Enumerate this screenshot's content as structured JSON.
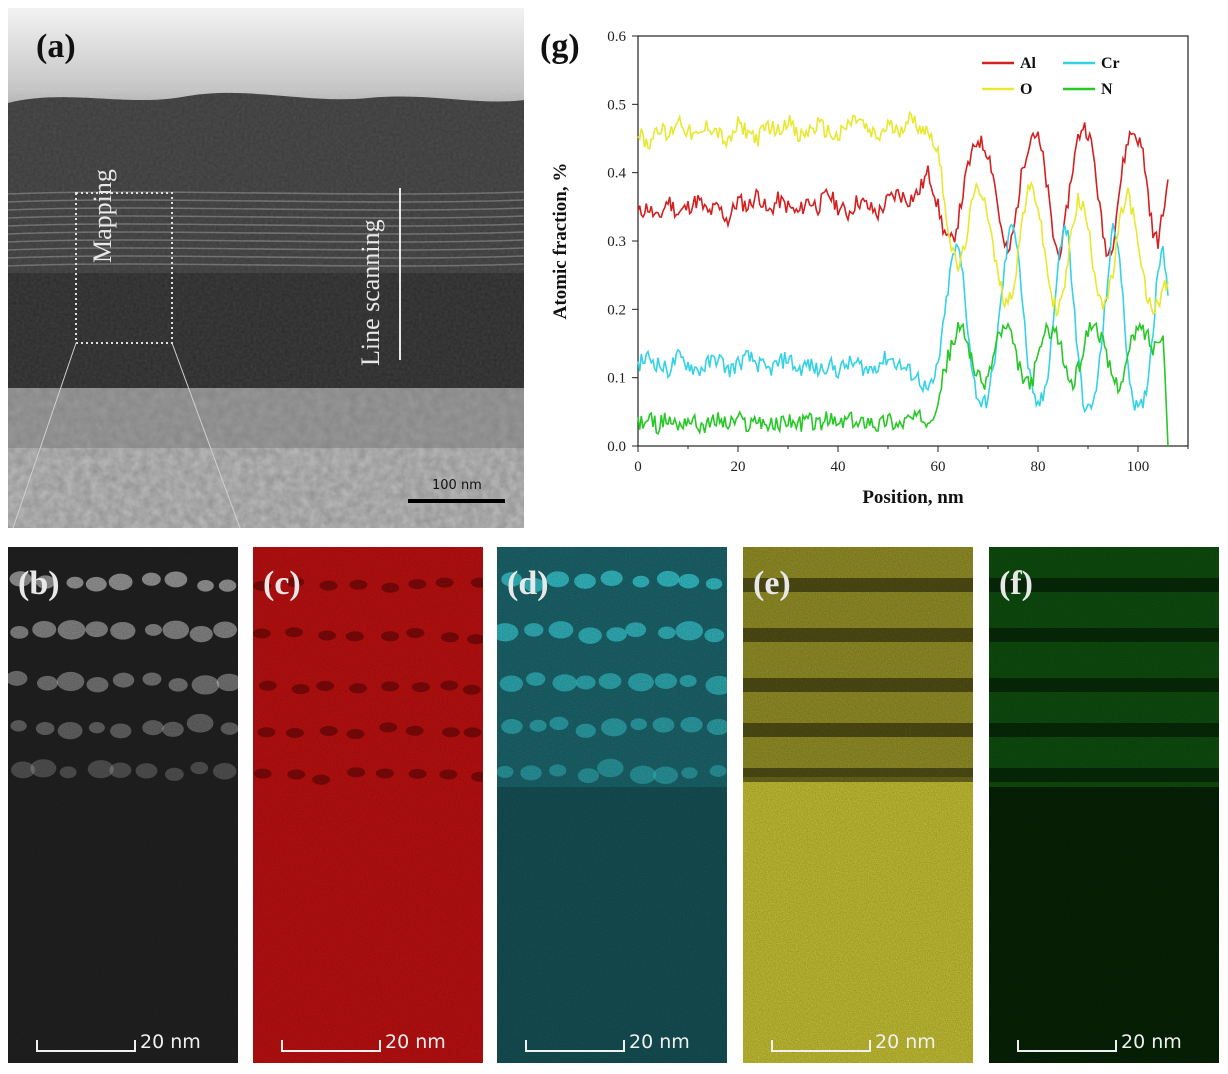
{
  "panels": {
    "a": {
      "label": "(a)",
      "mapping_text": "Mapping",
      "line_text": "Line scanning",
      "scale_text": "100 nm"
    },
    "b": {
      "label": "(b)",
      "scale_text": "20 nm",
      "color": "#ffffff"
    },
    "c": {
      "label": "(c)",
      "scale_text": "20 nm",
      "color": "#d21414"
    },
    "d": {
      "label": "(d)",
      "scale_text": "20 nm",
      "color": "#3ee0e8"
    },
    "e": {
      "label": "(e)",
      "scale_text": "20 nm",
      "color": "#e6e040"
    },
    "f": {
      "label": "(f)",
      "scale_text": "20 nm",
      "color": "#2fe02f"
    },
    "g": {
      "label": "(g)"
    }
  },
  "chart_data": {
    "type": "line",
    "xlabel": "Position, nm",
    "ylabel": "Atomic fraction, %",
    "xlim": [
      0,
      110
    ],
    "ylim": [
      0,
      0.6
    ],
    "xticks": [
      0,
      20,
      40,
      60,
      80,
      100
    ],
    "yticks": [
      0.0,
      0.1,
      0.2,
      0.3,
      0.4,
      0.5,
      0.6
    ],
    "ytick_labels": [
      "0.0",
      "0.1",
      "0.2",
      "0.3",
      "0.4",
      "0.5",
      "0.6"
    ],
    "x": [
      0,
      2,
      4,
      6,
      8,
      10,
      12,
      14,
      16,
      18,
      20,
      22,
      24,
      26,
      28,
      30,
      32,
      34,
      36,
      38,
      40,
      42,
      44,
      46,
      48,
      50,
      52,
      54,
      56,
      58,
      59,
      60,
      61,
      62,
      63,
      64,
      65,
      66,
      67,
      68,
      69,
      70,
      71,
      72,
      73,
      74,
      75,
      76,
      77,
      78,
      79,
      80,
      81,
      82,
      83,
      84,
      85,
      86,
      87,
      88,
      89,
      90,
      91,
      92,
      93,
      94,
      95,
      96,
      97,
      98,
      99,
      100,
      101,
      102,
      103,
      104,
      105,
      106
    ],
    "series": [
      {
        "name": "Al",
        "color": "#d42020",
        "values": [
          0.34,
          0.35,
          0.33,
          0.36,
          0.34,
          0.35,
          0.36,
          0.34,
          0.35,
          0.33,
          0.36,
          0.35,
          0.37,
          0.34,
          0.36,
          0.35,
          0.34,
          0.36,
          0.35,
          0.37,
          0.35,
          0.34,
          0.36,
          0.35,
          0.34,
          0.36,
          0.37,
          0.36,
          0.37,
          0.4,
          0.38,
          0.35,
          0.32,
          0.3,
          0.3,
          0.33,
          0.37,
          0.41,
          0.43,
          0.45,
          0.44,
          0.43,
          0.4,
          0.35,
          0.3,
          0.28,
          0.31,
          0.36,
          0.41,
          0.44,
          0.46,
          0.45,
          0.42,
          0.37,
          0.31,
          0.28,
          0.3,
          0.36,
          0.41,
          0.45,
          0.47,
          0.46,
          0.43,
          0.37,
          0.31,
          0.28,
          0.3,
          0.36,
          0.41,
          0.45,
          0.46,
          0.45,
          0.43,
          0.37,
          0.31,
          0.3,
          0.34,
          0.39
        ]
      },
      {
        "name": "Cr",
        "color": "#35d2e6",
        "values": [
          0.12,
          0.13,
          0.12,
          0.11,
          0.13,
          0.12,
          0.11,
          0.12,
          0.13,
          0.11,
          0.12,
          0.13,
          0.12,
          0.11,
          0.12,
          0.13,
          0.11,
          0.12,
          0.11,
          0.12,
          0.11,
          0.12,
          0.12,
          0.11,
          0.12,
          0.13,
          0.12,
          0.11,
          0.1,
          0.08,
          0.09,
          0.12,
          0.17,
          0.23,
          0.28,
          0.29,
          0.25,
          0.17,
          0.1,
          0.07,
          0.06,
          0.07,
          0.11,
          0.17,
          0.24,
          0.3,
          0.33,
          0.29,
          0.2,
          0.12,
          0.07,
          0.06,
          0.07,
          0.11,
          0.18,
          0.26,
          0.32,
          0.31,
          0.22,
          0.13,
          0.07,
          0.05,
          0.06,
          0.1,
          0.17,
          0.25,
          0.32,
          0.3,
          0.21,
          0.12,
          0.07,
          0.05,
          0.06,
          0.1,
          0.17,
          0.26,
          0.3,
          0.22
        ]
      },
      {
        "name": "O",
        "color": "#e8e830",
        "values": [
          0.46,
          0.44,
          0.47,
          0.45,
          0.48,
          0.46,
          0.45,
          0.47,
          0.46,
          0.44,
          0.47,
          0.46,
          0.45,
          0.47,
          0.46,
          0.48,
          0.45,
          0.46,
          0.47,
          0.46,
          0.45,
          0.47,
          0.48,
          0.46,
          0.45,
          0.47,
          0.46,
          0.48,
          0.47,
          0.46,
          0.45,
          0.43,
          0.38,
          0.32,
          0.28,
          0.26,
          0.28,
          0.32,
          0.36,
          0.38,
          0.37,
          0.34,
          0.29,
          0.25,
          0.22,
          0.21,
          0.23,
          0.28,
          0.34,
          0.37,
          0.38,
          0.35,
          0.3,
          0.25,
          0.21,
          0.2,
          0.22,
          0.27,
          0.33,
          0.36,
          0.35,
          0.32,
          0.27,
          0.23,
          0.21,
          0.22,
          0.25,
          0.31,
          0.35,
          0.37,
          0.34,
          0.29,
          0.25,
          0.21,
          0.2,
          0.21,
          0.23,
          0.24
        ]
      },
      {
        "name": "N",
        "color": "#28c828",
        "values": [
          0.03,
          0.04,
          0.03,
          0.04,
          0.03,
          0.04,
          0.03,
          0.03,
          0.04,
          0.03,
          0.04,
          0.03,
          0.04,
          0.03,
          0.03,
          0.04,
          0.03,
          0.04,
          0.03,
          0.04,
          0.03,
          0.04,
          0.03,
          0.04,
          0.03,
          0.04,
          0.03,
          0.04,
          0.04,
          0.04,
          0.05,
          0.07,
          0.1,
          0.13,
          0.15,
          0.17,
          0.17,
          0.15,
          0.12,
          0.1,
          0.09,
          0.1,
          0.13,
          0.16,
          0.17,
          0.17,
          0.15,
          0.12,
          0.1,
          0.09,
          0.1,
          0.13,
          0.16,
          0.17,
          0.17,
          0.16,
          0.13,
          0.1,
          0.09,
          0.11,
          0.14,
          0.17,
          0.18,
          0.17,
          0.15,
          0.12,
          0.1,
          0.09,
          0.1,
          0.13,
          0.16,
          0.17,
          0.17,
          0.16,
          0.14,
          0.16,
          0.17,
          0.0
        ]
      }
    ],
    "legend": {
      "position": "top-right",
      "entries": [
        "Al",
        "Cr",
        "O",
        "N"
      ]
    }
  }
}
